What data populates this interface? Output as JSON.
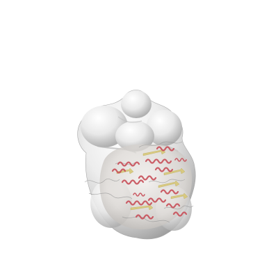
{
  "scene": {
    "background_color": "#ffffff",
    "subject": "density-map-with-fitted-ribbon-model",
    "surface_color": "#e6e6e6",
    "surface_highlight_color": "#ffffff",
    "surface_shadow_color": "#8f8f8f",
    "helix_color": "#c8505a",
    "strand_color": "#d8c878",
    "coil_color": "#9a9a9a"
  }
}
